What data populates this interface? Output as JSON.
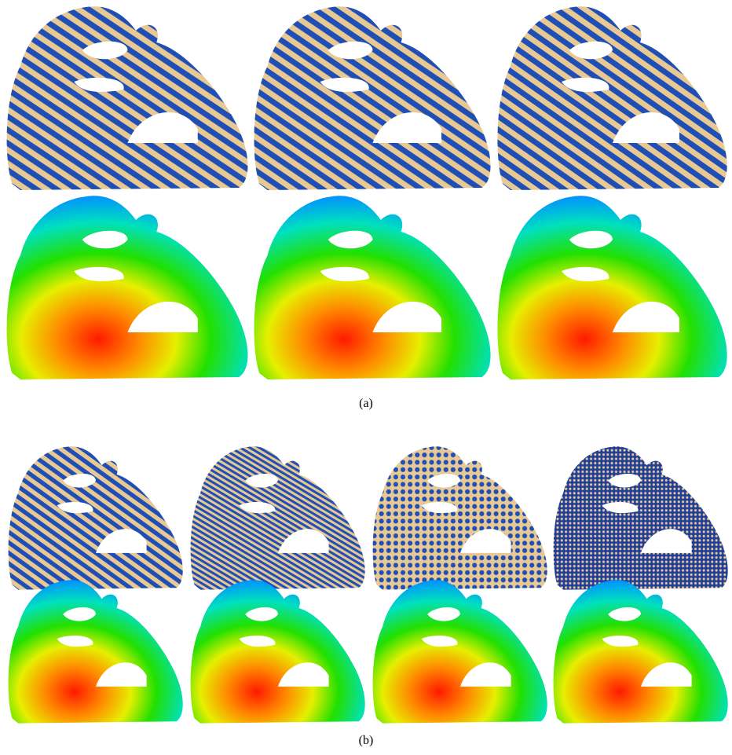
{
  "figure": {
    "panels": [
      {
        "label": "(a)"
      },
      {
        "label": "(b)"
      }
    ]
  }
}
